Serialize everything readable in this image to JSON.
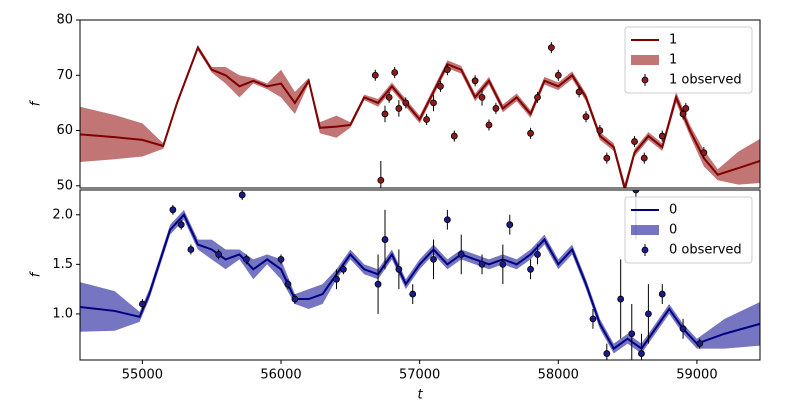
{
  "chart_data": [
    {
      "type": "line",
      "ylabel": "f",
      "legend": "upper right",
      "xlim": [
        54550,
        59455
      ],
      "ylim": [
        49.6,
        80
      ],
      "yticks": [
        50,
        60,
        70,
        80
      ],
      "series": [
        {
          "name": "1",
          "kind": "line",
          "color": "#800000",
          "x": [
            54550,
            54800,
            55000,
            55150,
            55250,
            55400,
            55500,
            55600,
            55700,
            55800,
            55900,
            56000,
            56100,
            56200,
            56280,
            56400,
            56500,
            56600,
            56700,
            56800,
            56900,
            57000,
            57100,
            57200,
            57300,
            57400,
            57500,
            57600,
            57700,
            57800,
            57900,
            58000,
            58100,
            58200,
            58300,
            58400,
            58480,
            58550,
            58650,
            58750,
            58850,
            58950,
            59050,
            59150,
            59300,
            59455
          ],
          "values": [
            59.3,
            58.8,
            58.3,
            57.2,
            65,
            75,
            71,
            70,
            68,
            69,
            68,
            68.5,
            65,
            69,
            60.5,
            60.7,
            61,
            66,
            65,
            68,
            65,
            62,
            67,
            72,
            71,
            66,
            69,
            64,
            66,
            63,
            69,
            68,
            70,
            66,
            59,
            57,
            49.5,
            56,
            59,
            57,
            66,
            60,
            55,
            52,
            53.2,
            54.5
          ]
        },
        {
          "name": "1",
          "kind": "band",
          "color": "#a83a3a",
          "x": [
            54550,
            54800,
            55000,
            55150,
            55250,
            55400,
            55500,
            55600,
            55700,
            55800,
            55900,
            56000,
            56100,
            56200,
            56280,
            56400,
            56500,
            56600,
            56700,
            56800,
            56900,
            57000,
            57100,
            57200,
            57300,
            57400,
            57500,
            57600,
            57700,
            57800,
            57900,
            58000,
            58100,
            58200,
            58300,
            58400,
            58480,
            58550,
            58650,
            58750,
            58850,
            58950,
            59050,
            59150,
            59300,
            59455
          ],
          "lower": [
            54.3,
            54.8,
            55.3,
            56.7,
            64.5,
            74.5,
            70.5,
            68.5,
            66,
            68.5,
            67.5,
            66,
            63,
            68.5,
            59.5,
            58.7,
            60.5,
            65.5,
            64.3,
            67.3,
            64.3,
            61.3,
            66.3,
            71.3,
            70.3,
            65.3,
            68.3,
            63.3,
            65.3,
            62.3,
            68.3,
            67.3,
            69.3,
            65.3,
            58.3,
            56.3,
            48.5,
            55.3,
            58.3,
            56.3,
            65,
            59,
            53.5,
            51,
            50.2,
            50.5
          ],
          "upper": [
            64.3,
            62.8,
            61.3,
            57.7,
            65.5,
            75.5,
            71.5,
            71.5,
            70,
            69.5,
            68.5,
            71,
            67,
            69.5,
            61.5,
            62.7,
            61.5,
            66.5,
            65.7,
            68.7,
            65.7,
            62.7,
            67.7,
            72.7,
            71.7,
            66.7,
            69.7,
            64.7,
            66.7,
            63.7,
            69.7,
            68.7,
            70.7,
            66.7,
            59.7,
            57.7,
            50.5,
            56.7,
            59.7,
            57.7,
            67,
            61,
            56.5,
            53,
            56.2,
            58.5
          ]
        },
        {
          "name": "1 observed",
          "kind": "points",
          "color": "#8b1a1a",
          "x": [
            56680,
            56720,
            56750,
            56780,
            56820,
            56850,
            56900,
            57050,
            57100,
            57150,
            57200,
            57250,
            57400,
            57450,
            57500,
            57550,
            57800,
            57850,
            57950,
            58000,
            58150,
            58200,
            58300,
            58350,
            58550,
            58620,
            58750,
            58900,
            58920,
            59050
          ],
          "values": [
            70,
            51,
            63,
            66,
            70.5,
            64,
            65,
            62,
            65,
            68,
            71,
            59,
            69,
            66,
            61,
            64,
            59.5,
            66,
            75,
            70,
            67,
            62.5,
            60,
            55,
            58,
            55,
            59,
            63,
            64,
            56
          ],
          "errors": [
            1,
            3.5,
            1.5,
            1,
            1,
            1.5,
            1,
            1,
            1.5,
            1,
            1,
            1,
            1,
            1.5,
            1,
            1,
            1,
            1,
            1,
            1,
            1,
            1,
            1,
            1,
            1,
            1,
            1,
            1,
            1,
            1
          ]
        }
      ]
    },
    {
      "type": "line",
      "ylabel": "f",
      "xlabel": "t",
      "legend": "upper right",
      "xlim": [
        54550,
        59455
      ],
      "ylim": [
        0.535,
        2.25
      ],
      "yticks": [
        {
          "value": 1,
          "label": "1.0"
        },
        1.5,
        {
          "value": 2,
          "label": "2.0"
        }
      ],
      "xticks": [
        55000,
        56000,
        57000,
        58000,
        59000
      ],
      "series": [
        {
          "name": "0",
          "kind": "line",
          "color": "#000080",
          "x": [
            54550,
            54800,
            54980,
            55050,
            55200,
            55300,
            55400,
            55500,
            55600,
            55700,
            55800,
            55900,
            56000,
            56100,
            56200,
            56300,
            56400,
            56500,
            56600,
            56700,
            56800,
            56900,
            57000,
            57100,
            57200,
            57300,
            57400,
            57500,
            57600,
            57700,
            57800,
            57900,
            58000,
            58100,
            58200,
            58300,
            58400,
            58500,
            58600,
            58700,
            58800,
            58900,
            59000,
            59200,
            59455
          ],
          "values": [
            1.07,
            1.03,
            0.97,
            1.2,
            1.85,
            2.0,
            1.7,
            1.65,
            1.55,
            1.6,
            1.45,
            1.55,
            1.45,
            1.15,
            1.15,
            1.2,
            1.4,
            1.6,
            1.45,
            1.4,
            1.6,
            1.3,
            1.5,
            1.65,
            1.5,
            1.6,
            1.55,
            1.5,
            1.55,
            1.5,
            1.6,
            1.75,
            1.5,
            1.65,
            1.3,
            0.9,
            0.65,
            0.75,
            0.65,
            0.85,
            1.05,
            0.85,
            0.7,
            0.8,
            0.9
          ]
        },
        {
          "name": "0",
          "kind": "band",
          "color": "#3a3aa8",
          "x": [
            54550,
            54800,
            54980,
            55050,
            55200,
            55300,
            55400,
            55500,
            55600,
            55700,
            55800,
            55900,
            56000,
            56100,
            56200,
            56300,
            56400,
            56500,
            56600,
            56700,
            56800,
            56900,
            57000,
            57100,
            57200,
            57300,
            57400,
            57500,
            57600,
            57700,
            57800,
            57900,
            58000,
            58100,
            58200,
            58300,
            58400,
            58500,
            58600,
            58700,
            58800,
            58900,
            59000,
            59200,
            59455
          ],
          "lower": [
            0.82,
            0.83,
            0.92,
            1.15,
            1.8,
            1.95,
            1.65,
            1.55,
            1.45,
            1.55,
            1.35,
            1.5,
            1.35,
            1.1,
            1.05,
            1.1,
            1.35,
            1.55,
            1.4,
            1.35,
            1.55,
            1.25,
            1.45,
            1.6,
            1.45,
            1.55,
            1.5,
            1.45,
            1.5,
            1.45,
            1.55,
            1.7,
            1.45,
            1.6,
            1.25,
            0.85,
            0.6,
            0.7,
            0.6,
            0.8,
            1.0,
            0.8,
            0.65,
            0.65,
            0.68
          ],
          "upper": [
            1.32,
            1.23,
            1.02,
            1.25,
            1.9,
            2.05,
            1.75,
            1.75,
            1.65,
            1.65,
            1.55,
            1.6,
            1.55,
            1.2,
            1.25,
            1.3,
            1.45,
            1.65,
            1.5,
            1.45,
            1.65,
            1.35,
            1.55,
            1.7,
            1.55,
            1.65,
            1.6,
            1.55,
            1.6,
            1.55,
            1.65,
            1.8,
            1.55,
            1.7,
            1.35,
            0.95,
            0.7,
            0.8,
            0.7,
            0.9,
            1.1,
            0.9,
            0.75,
            0.95,
            1.12
          ]
        },
        {
          "name": "0 observed",
          "kind": "points",
          "color": "#1a1a8b",
          "x": [
            55000,
            55220,
            55280,
            55350,
            55550,
            55720,
            55750,
            56000,
            56050,
            56100,
            56400,
            56450,
            56700,
            56750,
            56850,
            56950,
            57100,
            57200,
            57300,
            57450,
            57600,
            57650,
            57800,
            57850,
            58250,
            58350,
            58450,
            58530,
            58560,
            58600,
            58650,
            58750,
            58900,
            59020
          ],
          "values": [
            1.1,
            2.05,
            1.9,
            1.65,
            1.6,
            2.2,
            1.55,
            1.55,
            1.3,
            1.15,
            1.35,
            1.45,
            1.3,
            1.75,
            1.45,
            1.2,
            1.55,
            1.95,
            1.6,
            1.5,
            1.5,
            1.9,
            1.45,
            1.6,
            0.95,
            0.6,
            1.15,
            0.8,
            2.25,
            0.6,
            1.0,
            1.2,
            0.85,
            0.7
          ],
          "errors": [
            0.05,
            0.05,
            0.05,
            0.05,
            0.05,
            0.05,
            0.05,
            0.05,
            0.05,
            0.05,
            0.1,
            0.05,
            0.3,
            0.3,
            0.2,
            0.1,
            0.2,
            0.1,
            0.2,
            0.1,
            0.2,
            0.1,
            0.1,
            0.1,
            0.1,
            0.1,
            0.4,
            0.3,
            0.5,
            0.2,
            0.3,
            0.1,
            0.1,
            0.05
          ]
        }
      ]
    }
  ]
}
